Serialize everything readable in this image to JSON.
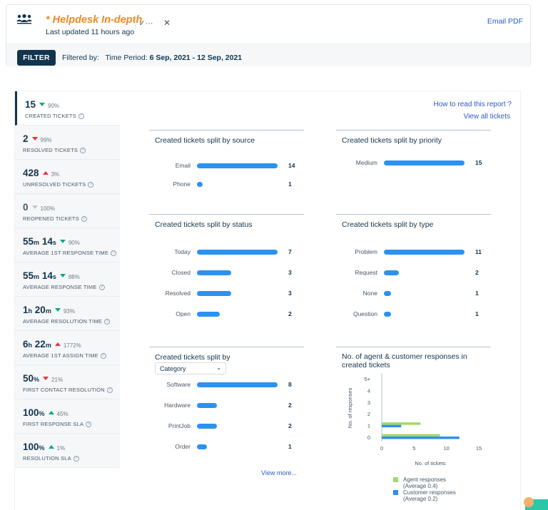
{
  "header": {
    "title": "* Helpdesk In-depth",
    "last_updated_prefix": "Last updated",
    "last_updated_value": "11 hours ago",
    "email_pdf": "Email PDF"
  },
  "filter": {
    "button": "FILTER",
    "filtered_by": "Filtered by:",
    "time_period_label": "Time Period:",
    "time_period_value": "6 Sep, 2021 - 12 Sep, 2021"
  },
  "links": {
    "how_to": "How to read this report ?",
    "view_all": "View all tickets",
    "view_more": "View more..."
  },
  "metrics": [
    {
      "value": "15",
      "unit1": "",
      "value2": "",
      "unit2": "",
      "pct": "90%",
      "trend": "down-green",
      "label": "CREATED TICKETS"
    },
    {
      "value": "2",
      "unit1": "",
      "value2": "",
      "unit2": "",
      "pct": "99%",
      "trend": "down-red",
      "label": "RESOLVED TICKETS"
    },
    {
      "value": "428",
      "unit1": "",
      "value2": "",
      "unit2": "",
      "pct": "3%",
      "trend": "up-red",
      "label": "UNRESOLVED TICKETS"
    },
    {
      "value": "0",
      "unit1": "",
      "value2": "",
      "unit2": "",
      "pct": "100%",
      "trend": "down-grey",
      "label": "REOPENED TICKETS"
    },
    {
      "value": "55",
      "unit1": "m",
      "value2": "14",
      "unit2": "s",
      "pct": "90%",
      "trend": "down-green",
      "label": "AVERAGE 1ST RESPONSE TIME"
    },
    {
      "value": "55",
      "unit1": "m",
      "value2": "14",
      "unit2": "s",
      "pct": "88%",
      "trend": "down-green",
      "label": "AVERAGE RESPONSE TIME"
    },
    {
      "value": "1",
      "unit1": "h",
      "value2": "20",
      "unit2": "m",
      "pct": "93%",
      "trend": "down-green",
      "label": "AVERAGE RESOLUTION TIME"
    },
    {
      "value": "6",
      "unit1": "h",
      "value2": "22",
      "unit2": "m",
      "pct": "1772%",
      "trend": "up-red",
      "label": "AVERAGE 1ST ASSIGN TIME"
    },
    {
      "value": "50",
      "unit1": "%",
      "value2": "",
      "unit2": "",
      "pct": "21%",
      "trend": "down-red",
      "label": "FIRST CONTACT RESOLUTION"
    },
    {
      "value": "100",
      "unit1": "%",
      "value2": "",
      "unit2": "",
      "pct": "45%",
      "trend": "up-green",
      "label": "FIRST RESPONSE SLA"
    },
    {
      "value": "100",
      "unit1": "%",
      "value2": "",
      "unit2": "",
      "pct": "1%",
      "trend": "up-green",
      "label": "RESOLUTION SLA"
    }
  ],
  "panels": {
    "source": {
      "title": "Created tickets split by source",
      "rows": [
        {
          "label": "Email",
          "value": 14
        },
        {
          "label": "Phone",
          "value": 1
        }
      ],
      "max": 14
    },
    "priority": {
      "title": "Created tickets split by priority",
      "rows": [
        {
          "label": "Medium",
          "value": 15
        }
      ],
      "max": 15
    },
    "status": {
      "title": "Created tickets split by status",
      "rows": [
        {
          "label": "Today",
          "value": 7
        },
        {
          "label": "Closed",
          "value": 3
        },
        {
          "label": "Resolved",
          "value": 3
        },
        {
          "label": "Open",
          "value": 2
        }
      ],
      "max": 7
    },
    "type": {
      "title": "Created tickets split by type",
      "rows": [
        {
          "label": "Problem",
          "value": 11
        },
        {
          "label": "Request",
          "value": 2
        },
        {
          "label": "None",
          "value": 1
        },
        {
          "label": "Question",
          "value": 1
        }
      ],
      "max": 11
    },
    "category": {
      "title": "Created tickets split by",
      "select_value": "Category",
      "rows": [
        {
          "label": "Software",
          "value": 8
        },
        {
          "label": "Hardware",
          "value": 2
        },
        {
          "label": "PrintJob",
          "value": 2
        },
        {
          "label": "Order",
          "value": 1
        }
      ],
      "max": 8
    }
  },
  "responses_chart": {
    "title_line1": "No. of agent & customer responses in",
    "title_line2": "created tickets",
    "legend_agent": "Agent responses",
    "legend_agent_avg": "(Average 0.4)",
    "legend_customer": "Customer responses",
    "legend_customer_avg": "(Average 0.2)",
    "colors": {
      "agent": "#a3d86b",
      "customer": "#2c92f0"
    }
  },
  "chart_data": {
    "type": "bar",
    "orientation": "horizontal",
    "categories": [
      "0",
      "1",
      "2",
      "3",
      "4",
      "5+"
    ],
    "series": [
      {
        "name": "Agent responses",
        "values": [
          9,
          6,
          0,
          0,
          0,
          0
        ]
      },
      {
        "name": "Customer responses",
        "values": [
          12,
          3,
          0,
          0,
          0,
          0
        ]
      }
    ],
    "xlabel": "No. of tickets",
    "ylabel": "No. of responses",
    "xticks": [
      "0",
      "5",
      "10",
      "15"
    ],
    "xlim": [
      0,
      15
    ]
  }
}
